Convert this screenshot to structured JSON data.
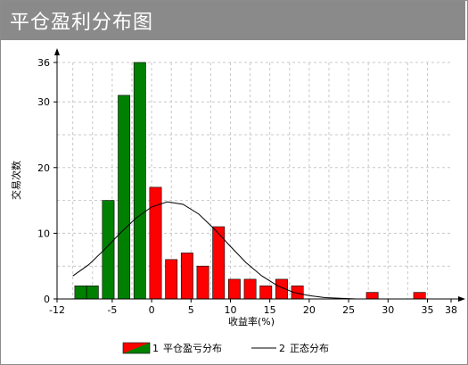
{
  "title": "平仓盈利分布图",
  "colors": {
    "profit": "#ff0000",
    "loss": "#008000",
    "normal_curve": "#000000",
    "title_bar": "#8a8a8a",
    "grid": "#c8c8c8"
  },
  "chart_data": {
    "type": "bar",
    "title": "平仓盈利分布图",
    "xlabel": "收益率(%)",
    "ylabel": "交易次数",
    "xlim": [
      -12,
      38
    ],
    "ylim": [
      0,
      36
    ],
    "x_ticks": [
      -12,
      -5,
      0,
      5,
      10,
      15,
      20,
      25,
      30,
      35,
      38
    ],
    "y_ticks": [
      0,
      10,
      20,
      30,
      36
    ],
    "grid": true,
    "legend_position": "bottom",
    "bar_width": 1.5,
    "series": [
      {
        "name": "平仓盈亏分布",
        "legend_prefix": "1",
        "kind": "bar",
        "bins": [
          {
            "x": -9.0,
            "value": 2,
            "sign": "loss"
          },
          {
            "x": -7.5,
            "value": 2,
            "sign": "loss"
          },
          {
            "x": -5.5,
            "value": 15,
            "sign": "loss"
          },
          {
            "x": -3.5,
            "value": 31,
            "sign": "loss"
          },
          {
            "x": -1.5,
            "value": 36,
            "sign": "loss"
          },
          {
            "x": 0.5,
            "value": 17,
            "sign": "profit"
          },
          {
            "x": 2.5,
            "value": 6,
            "sign": "profit"
          },
          {
            "x": 4.5,
            "value": 7,
            "sign": "profit"
          },
          {
            "x": 6.5,
            "value": 5,
            "sign": "profit"
          },
          {
            "x": 8.5,
            "value": 11,
            "sign": "profit"
          },
          {
            "x": 10.5,
            "value": 3,
            "sign": "profit"
          },
          {
            "x": 12.5,
            "value": 3,
            "sign": "profit"
          },
          {
            "x": 14.5,
            "value": 2,
            "sign": "profit"
          },
          {
            "x": 16.5,
            "value": 3,
            "sign": "profit"
          },
          {
            "x": 18.5,
            "value": 2,
            "sign": "profit"
          },
          {
            "x": 28.0,
            "value": 1,
            "sign": "profit"
          },
          {
            "x": 34.0,
            "value": 1,
            "sign": "profit"
          }
        ]
      },
      {
        "name": "正态分布",
        "legend_prefix": "2",
        "kind": "line",
        "x": [
          -10,
          -8,
          -6,
          -4,
          -2,
          0,
          2,
          4,
          6,
          8,
          10,
          12,
          14,
          16,
          18,
          20,
          22,
          24,
          26
        ],
        "y": [
          3.5,
          5.2,
          7.5,
          10.0,
          12.3,
          14.0,
          14.8,
          14.4,
          12.9,
          10.6,
          8.0,
          5.5,
          3.5,
          2.0,
          1.0,
          0.5,
          0.2,
          0.1,
          0.0
        ]
      }
    ]
  }
}
